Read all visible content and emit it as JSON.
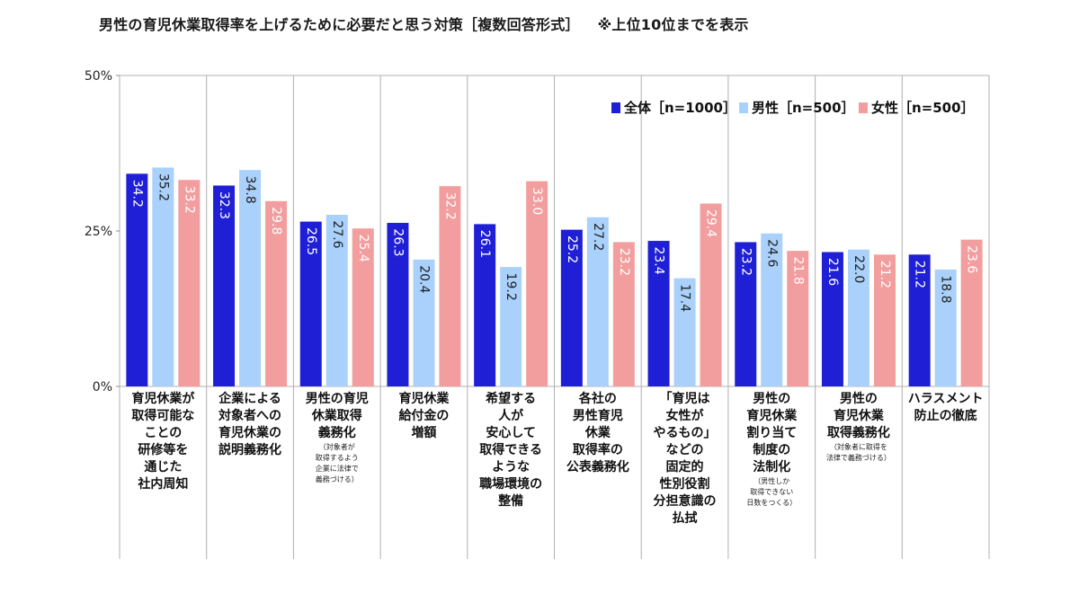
{
  "title": "男性の育児休業取得率を上げるために必要だと思う対策［複数回答形式］",
  "note": "※上位10位までを表示",
  "chart_data": {
    "type": "bar",
    "ylim": [
      0,
      50
    ],
    "yticks": [
      "0%",
      "25%",
      "50%"
    ],
    "legend_position": "top-right",
    "categories": [
      {
        "label": [
          "育児休業が",
          "取得可能な",
          "ことの",
          "研修等を",
          "通じた",
          "社内周知"
        ],
        "sub": []
      },
      {
        "label": [
          "企業による",
          "対象者への",
          "育児休業の",
          "説明義務化"
        ],
        "sub": []
      },
      {
        "label": [
          "男性の育児",
          "休業取得",
          "義務化"
        ],
        "sub": [
          "（対象者が",
          "取得するよう",
          "企業に法律で",
          "義務づける）"
        ]
      },
      {
        "label": [
          "育児休業",
          "給付金の",
          "増額"
        ],
        "sub": []
      },
      {
        "label": [
          "希望する",
          "人が",
          "安心して",
          "取得できる",
          "ような",
          "職場環境の",
          "整備"
        ],
        "sub": []
      },
      {
        "label": [
          "各社の",
          "男性育児",
          "休業",
          "取得率の",
          "公表義務化"
        ],
        "sub": []
      },
      {
        "label": [
          "「育児は",
          "女性が",
          "やるもの」",
          "などの",
          "固定的",
          "性別役割",
          "分担意識の",
          "払拭"
        ],
        "sub": []
      },
      {
        "label": [
          "男性の",
          "育児休業",
          "割り当て",
          "制度の",
          "法制化"
        ],
        "sub": [
          "（男性しか",
          "取得できない",
          "日数をつくる）"
        ]
      },
      {
        "label": [
          "男性の",
          "育児休業",
          "取得義務化"
        ],
        "sub": [
          "（対象者に取得を",
          "法律で義務づける）"
        ]
      },
      {
        "label": [
          "ハラスメント",
          "防止の徹底"
        ],
        "sub": []
      }
    ],
    "series": [
      {
        "name": "全体［n=1000］",
        "color": "#1f1fd6",
        "values": [
          34.2,
          32.3,
          26.5,
          26.3,
          26.1,
          25.2,
          23.4,
          23.2,
          21.6,
          21.2
        ]
      },
      {
        "name": "男性［n=500］",
        "color": "#a9d1fb",
        "values": [
          35.2,
          34.8,
          27.6,
          20.4,
          19.2,
          27.2,
          17.4,
          24.6,
          22.0,
          18.8
        ]
      },
      {
        "name": "女性［n=500］",
        "color": "#f29e9e",
        "values": [
          33.2,
          29.8,
          25.4,
          32.2,
          33.0,
          23.2,
          29.4,
          21.8,
          21.2,
          23.6
        ]
      }
    ]
  }
}
